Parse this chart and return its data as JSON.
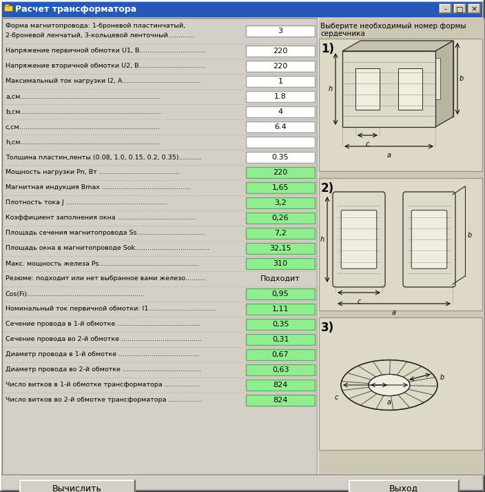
{
  "title": "Расчет трансформатора",
  "bg_color": "#d4d0c8",
  "input_bg": "#ffffff",
  "output_bg": "#90ee90",
  "rows": [
    {
      "label": "Форма магнитопровода: 1-броневой пластинчатый,\n2-броневой ленчатый, 3-кольцевой ленточный.............",
      "value": "3",
      "type": "input"
    },
    {
      "label": "Напряжение первичной обмотки U1, В................................",
      "value": "220",
      "type": "input"
    },
    {
      "label": "Напряжение вторичной обмотки U2, В................................",
      "value": "220",
      "type": "input"
    },
    {
      "label": "Максимальный ток нагрузки I2, А......................................",
      "value": "1",
      "type": "input"
    },
    {
      "label": "а,см....................................................................",
      "value": "1.8",
      "type": "input"
    },
    {
      "label": "b,см....................................................................",
      "value": "4",
      "type": "input"
    },
    {
      "label": "с,см....................................................................",
      "value": "6.4",
      "type": "input"
    },
    {
      "label": "h,см....................................................................",
      "value": "",
      "type": "input"
    },
    {
      "label": "Толщина пластин,ленты (0.08, 1.0, 0.15, 0.2, 0.35)...........",
      "value": "0.35",
      "type": "input"
    },
    {
      "label": "Мощность нагрузки Pn, Вт .......................................",
      "value": "220",
      "type": "output"
    },
    {
      "label": "Магнитная индукция Bmax ...........................................",
      "value": "1,65",
      "type": "output"
    },
    {
      "label": "Плотность тока J .................................................",
      "value": "3,2",
      "type": "output"
    },
    {
      "label": "Коэффициент заполнения окна ......................................",
      "value": "0,26",
      "type": "output"
    },
    {
      "label": "Площадь сечения магнитопровода Ss.................................",
      "value": "7,2",
      "type": "output"
    },
    {
      "label": "Площадь окна в магнитопроводе Sok....................................",
      "value": "32,15",
      "type": "output"
    },
    {
      "label": "Макс. мощность железа Ps................................................",
      "value": "310",
      "type": "output"
    },
    {
      "label": "Резюме: подходит или нет выбранное вами железо..........",
      "value": "Подходит",
      "type": "output_text"
    },
    {
      "label": "Cos(Fi).........................................................",
      "value": "0,95",
      "type": "output"
    },
    {
      "label": "Номинальный ток первичной обмотки: I1.................................",
      "value": "1,11",
      "type": "output"
    },
    {
      "label": "Сечение провода в 1-й обмотке ........................................",
      "value": "0,35",
      "type": "output"
    },
    {
      "label": "Сечение провода во 2-й обмотке .......................................",
      "value": "0,31",
      "type": "output"
    },
    {
      "label": "Диаметр провода в 1-й обмотке .......................................",
      "value": "0,67",
      "type": "output"
    },
    {
      "label": "Диаметр провода во 2-й обмотке ......................................",
      "value": "0,63",
      "type": "output"
    },
    {
      "label": "Число витков в 1-й обмотке трансформатора .................",
      "value": "824",
      "type": "output"
    },
    {
      "label": "Число витков во 2-й обмотке трансформатора ................",
      "value": "824",
      "type": "output"
    }
  ],
  "right_label_line1": "Выберите необходимый номер формы",
  "right_label_line2": "сердечника",
  "button1_text": "Вычислить",
  "button2_text": "Выход"
}
